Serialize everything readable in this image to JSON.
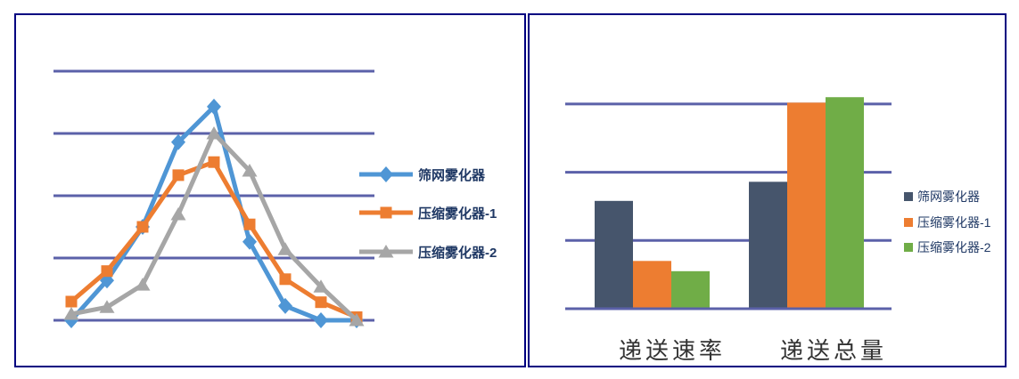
{
  "page": {
    "background": "#FFFFFF",
    "panel_border_color": "#000080",
    "grid_color": "#5B61A9",
    "legend_text_color": "#1F3864",
    "category_text_color": "#333333"
  },
  "chart_data": [
    {
      "type": "line",
      "title": "",
      "xlabel": "",
      "ylabel": "",
      "x": [
        1,
        2,
        3,
        4,
        5,
        6,
        7,
        8,
        9
      ],
      "x_tick_labels_visible": false,
      "y_tick_labels_visible": false,
      "units": "gridline intervals (no tick labels shown)",
      "ylim": [
        0,
        4
      ],
      "gridline_values": [
        0,
        1,
        2,
        3,
        4
      ],
      "grid": true,
      "legend_position": "right",
      "series": [
        {
          "name": "筛网雾化器",
          "marker": "diamond",
          "color": "#4F96D5",
          "values": [
            0,
            0.64,
            1.5,
            2.86,
            3.43,
            1.26,
            0.23,
            0,
            0
          ]
        },
        {
          "name": "压缩雾化器-1",
          "marker": "square",
          "color": "#ED7D31",
          "values": [
            0.3,
            0.79,
            1.5,
            2.33,
            2.54,
            1.54,
            0.66,
            0.29,
            0.05
          ]
        },
        {
          "name": "压缩雾化器-2",
          "marker": "triangle",
          "color": "#A6A6A6",
          "values": [
            0.1,
            0.21,
            0.57,
            1.7,
            3.0,
            2.4,
            1.14,
            0.54,
            0
          ]
        }
      ]
    },
    {
      "type": "bar",
      "title": "",
      "xlabel": "",
      "ylabel": "",
      "categories": [
        "递送速率",
        "递送总量"
      ],
      "y_tick_labels_visible": false,
      "units": "gridline intervals (no tick labels shown)",
      "ylim": [
        0,
        3.2
      ],
      "gridline_values": [
        0,
        1,
        2,
        3
      ],
      "grid": true,
      "legend_position": "right",
      "series": [
        {
          "name": "筛网雾化器",
          "color": "#46556C",
          "values": [
            1.58,
            1.86
          ]
        },
        {
          "name": "压缩雾化器-1",
          "color": "#ED7D31",
          "values": [
            0.7,
            3.02
          ]
        },
        {
          "name": "压缩雾化器-2",
          "color": "#70AD47",
          "values": [
            0.55,
            3.1
          ]
        }
      ]
    }
  ]
}
